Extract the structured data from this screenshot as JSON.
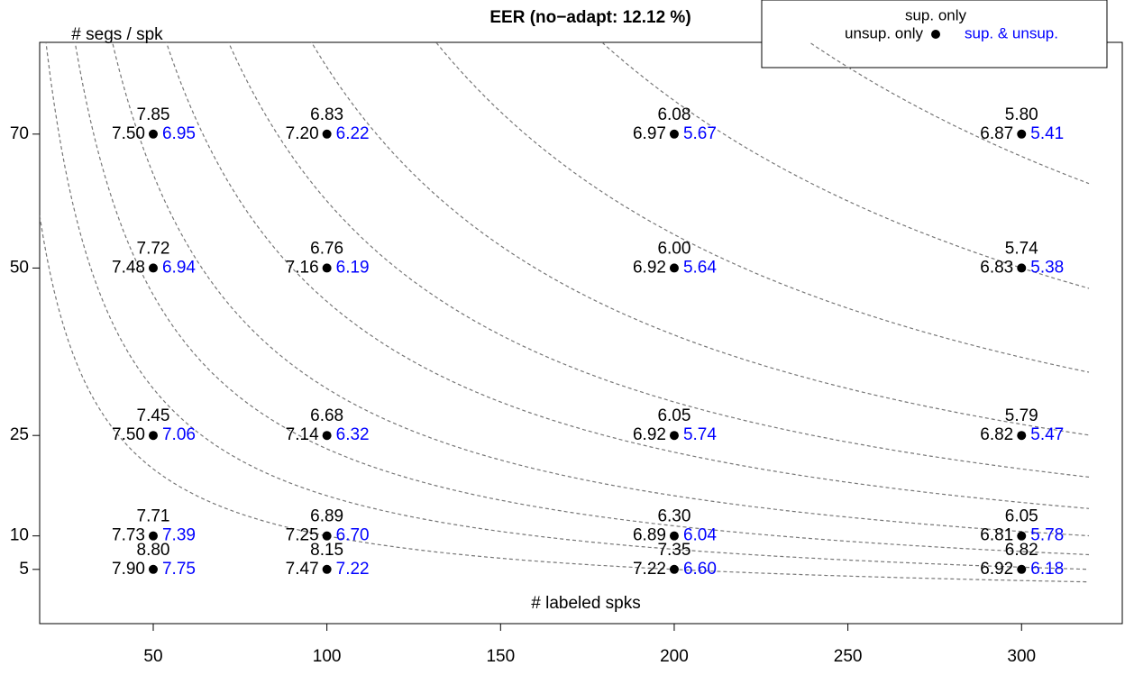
{
  "chart_data": {
    "type": "scatter",
    "title": "EER (no−adapt: 12.12 %)",
    "y_label": "# segs / spk",
    "x_label": "# labeled spks",
    "x": [
      50,
      100,
      200,
      300,
      50,
      100,
      200,
      300,
      50,
      100,
      200,
      300,
      50,
      100,
      200,
      300,
      50,
      100,
      200,
      300
    ],
    "y": [
      70,
      70,
      70,
      70,
      50,
      50,
      50,
      50,
      25,
      25,
      25,
      25,
      10,
      10,
      10,
      10,
      5,
      5,
      5,
      5
    ],
    "series": [
      {
        "name": "sup. only",
        "color": "#000000",
        "position": "above",
        "values": [
          7.85,
          6.83,
          6.08,
          5.8,
          7.72,
          6.76,
          6.0,
          5.74,
          7.45,
          6.68,
          6.05,
          5.79,
          7.71,
          6.89,
          6.3,
          6.05,
          8.8,
          8.15,
          7.35,
          6.82
        ],
        "value_labels": [
          "7.85",
          "6.83",
          "6.08",
          "5.80",
          "7.72",
          "6.76",
          "6.00",
          "5.74",
          "7.45",
          "6.68",
          "6.05",
          "5.79",
          "7.71",
          "6.89",
          "6.30",
          "6.05",
          "8.80",
          "8.15",
          "7.35",
          "6.82"
        ]
      },
      {
        "name": "unsup. only",
        "color": "#000000",
        "position": "left",
        "values": [
          7.5,
          7.2,
          6.97,
          6.87,
          7.48,
          7.16,
          6.92,
          6.83,
          7.5,
          7.14,
          6.92,
          6.82,
          7.73,
          7.25,
          6.89,
          6.81,
          7.9,
          7.47,
          7.22,
          6.92
        ],
        "value_labels": [
          "7.50",
          "7.20",
          "6.97",
          "6.87",
          "7.48",
          "7.16",
          "6.92",
          "6.83",
          "7.50",
          "7.14",
          "6.92",
          "6.82",
          "7.73",
          "7.25",
          "6.89",
          "6.81",
          "7.90",
          "7.47",
          "7.22",
          "6.92"
        ]
      },
      {
        "name": "sup. & unsup.",
        "color": "#0000ff",
        "position": "right",
        "values": [
          6.95,
          6.22,
          5.67,
          5.41,
          6.94,
          6.19,
          5.64,
          5.38,
          7.06,
          6.32,
          5.74,
          5.47,
          7.39,
          6.7,
          6.04,
          5.78,
          7.75,
          7.22,
          6.6,
          6.18
        ],
        "value_labels": [
          "6.95",
          "6.22",
          "5.67",
          "5.41",
          "6.94",
          "6.19",
          "5.64",
          "5.38",
          "7.06",
          "6.32",
          "5.74",
          "5.47",
          "7.39",
          "6.70",
          "6.04",
          "5.78",
          "7.75",
          "7.22",
          "6.60",
          "6.18"
        ]
      }
    ],
    "contours": [
      1000,
      1600,
      2300,
      3200,
      4500,
      6000,
      8000,
      11000,
      15000,
      20000
    ],
    "xlim": [
      17.3,
      329
    ],
    "ylim": [
      -3.1,
      83.7
    ],
    "xticks": [
      50,
      100,
      150,
      200,
      250,
      300
    ],
    "yticks": [
      5,
      10,
      25,
      50,
      70
    ],
    "grid": false,
    "legend": "top-right"
  }
}
